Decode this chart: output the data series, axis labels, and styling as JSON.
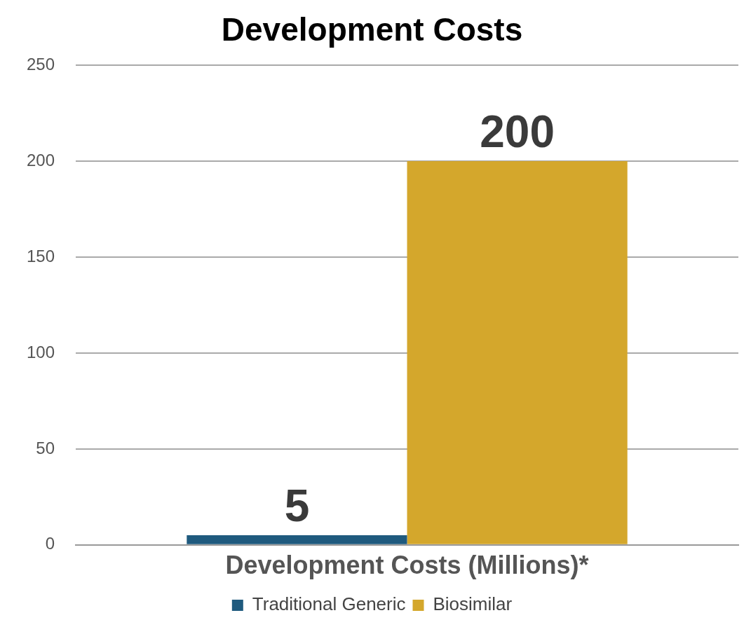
{
  "chart_data": {
    "type": "bar",
    "title": "Development Costs",
    "categories": [
      "Development Costs (Millions)*"
    ],
    "series": [
      {
        "name": "Traditional Generic",
        "color": "#1f5a7e",
        "values": [
          5
        ]
      },
      {
        "name": "Biosimilar",
        "color": "#d4a72c",
        "values": [
          200
        ]
      }
    ],
    "ylim": [
      0,
      250
    ],
    "yticks": [
      0,
      50,
      100,
      150,
      200,
      250
    ],
    "grid": "y",
    "legend": "bottom",
    "data_labels": true
  }
}
